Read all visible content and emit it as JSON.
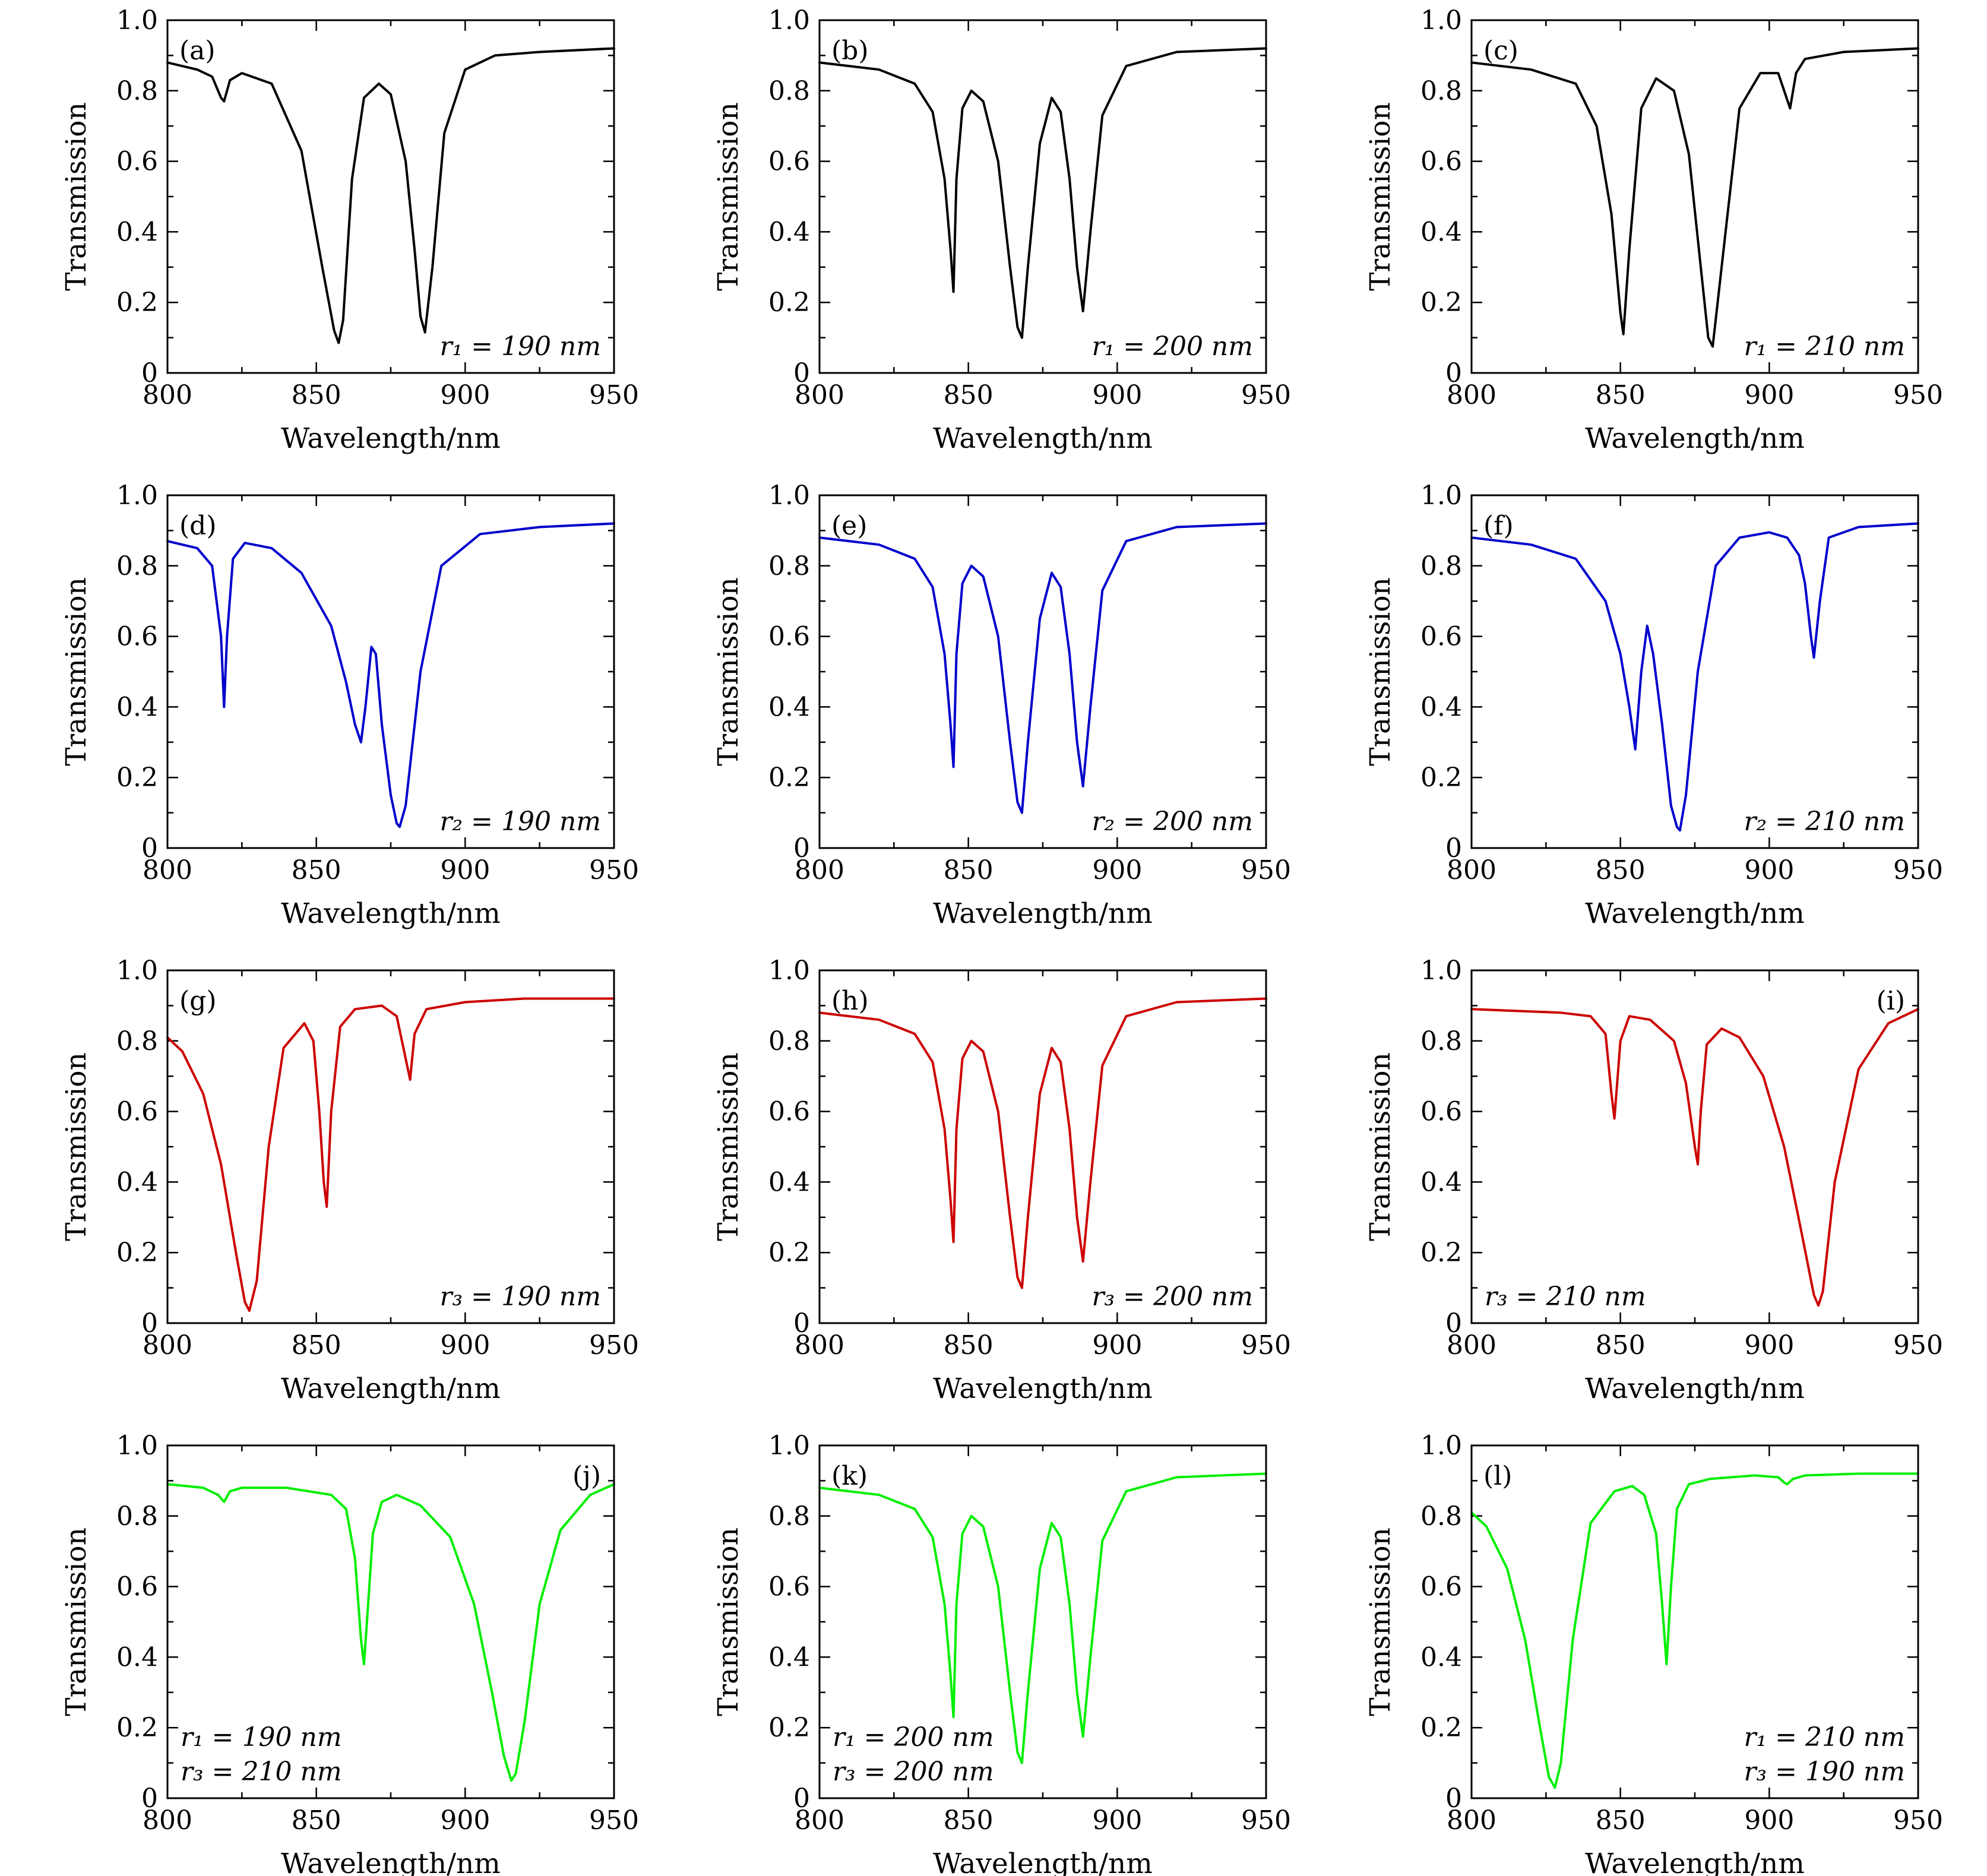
{
  "chart_data": [
    {
      "type": "line",
      "panel_label": "(a)",
      "annotation": [
        "r₁ = 190 nm"
      ],
      "annotation_position": "bottom-right",
      "label_position": "top-left",
      "color": "#000000",
      "xlabel": "Wavelength/nm",
      "ylabel": "Transmission",
      "xlim": [
        800,
        950
      ],
      "ylim": [
        0,
        1.0
      ],
      "xticks": [
        "800",
        "850",
        "900",
        "950"
      ],
      "yticks": [
        "0",
        "0.2",
        "0.4",
        "0.6",
        "0.8",
        "1.0"
      ],
      "x": [
        800,
        810,
        815,
        818,
        819,
        821,
        825,
        835,
        845,
        852,
        856,
        857.5,
        859,
        862,
        866,
        871,
        875,
        880,
        883,
        885,
        886.5,
        889,
        893,
        900,
        910,
        925,
        950
      ],
      "values": [
        0.88,
        0.86,
        0.84,
        0.78,
        0.77,
        0.83,
        0.85,
        0.82,
        0.63,
        0.3,
        0.12,
        0.085,
        0.15,
        0.55,
        0.78,
        0.82,
        0.79,
        0.6,
        0.35,
        0.16,
        0.115,
        0.3,
        0.68,
        0.86,
        0.9,
        0.91,
        0.92
      ]
    },
    {
      "type": "line",
      "panel_label": "(b)",
      "annotation": [
        "r₁ = 200 nm"
      ],
      "annotation_position": "bottom-right",
      "label_position": "top-left",
      "color": "#000000",
      "xlabel": "Wavelength/nm",
      "ylabel": "Transmission",
      "xlim": [
        800,
        950
      ],
      "ylim": [
        0,
        1.0
      ],
      "xticks": [
        "800",
        "850",
        "900",
        "950"
      ],
      "yticks": [
        "0",
        "0.2",
        "0.4",
        "0.6",
        "0.8",
        "1.0"
      ],
      "x": [
        800,
        820,
        832,
        838,
        842,
        844,
        845,
        846,
        848,
        851,
        855,
        860,
        864,
        866.5,
        868,
        870,
        874,
        878,
        881,
        884,
        886.5,
        888.5,
        891,
        895,
        903,
        920,
        950
      ],
      "values": [
        0.88,
        0.86,
        0.82,
        0.74,
        0.55,
        0.35,
        0.23,
        0.55,
        0.75,
        0.8,
        0.77,
        0.6,
        0.3,
        0.13,
        0.1,
        0.3,
        0.65,
        0.78,
        0.74,
        0.55,
        0.3,
        0.175,
        0.4,
        0.73,
        0.87,
        0.91,
        0.92
      ]
    },
    {
      "type": "line",
      "panel_label": "(c)",
      "annotation": [
        "r₁ = 210 nm"
      ],
      "annotation_position": "bottom-right",
      "label_position": "top-left",
      "color": "#000000",
      "xlabel": "Wavelength/nm",
      "ylabel": "Transmission",
      "xlim": [
        800,
        950
      ],
      "ylim": [
        0,
        1.0
      ],
      "xticks": [
        "800",
        "850",
        "900",
        "950"
      ],
      "yticks": [
        "0",
        "0.2",
        "0.4",
        "0.6",
        "0.8",
        "1.0"
      ],
      "x": [
        800,
        820,
        835,
        842,
        847,
        850,
        851,
        853,
        857,
        862,
        868,
        873,
        877,
        879.5,
        881,
        884,
        890,
        897,
        903,
        905,
        907,
        909,
        912,
        925,
        950
      ],
      "values": [
        0.88,
        0.86,
        0.82,
        0.7,
        0.45,
        0.17,
        0.11,
        0.35,
        0.75,
        0.835,
        0.8,
        0.62,
        0.3,
        0.1,
        0.075,
        0.3,
        0.75,
        0.85,
        0.85,
        0.8,
        0.75,
        0.85,
        0.89,
        0.91,
        0.92
      ]
    },
    {
      "type": "line",
      "panel_label": "(d)",
      "annotation": [
        "r₂ = 190 nm"
      ],
      "annotation_position": "bottom-right",
      "label_position": "top-left",
      "color": "#0000cc",
      "xlabel": "Wavelength/nm",
      "ylabel": "Transmission",
      "xlim": [
        800,
        950
      ],
      "ylim": [
        0,
        1.0
      ],
      "xticks": [
        "800",
        "850",
        "900",
        "950"
      ],
      "yticks": [
        "0",
        "0.2",
        "0.4",
        "0.6",
        "0.8",
        "1.0"
      ],
      "x": [
        800,
        810,
        815,
        818,
        819,
        820,
        822,
        826,
        835,
        845,
        855,
        860,
        863,
        865,
        866.5,
        868.5,
        870,
        872,
        875,
        877,
        878,
        880,
        885,
        892,
        905,
        925,
        950
      ],
      "values": [
        0.87,
        0.85,
        0.8,
        0.6,
        0.4,
        0.6,
        0.82,
        0.865,
        0.85,
        0.78,
        0.63,
        0.47,
        0.35,
        0.3,
        0.4,
        0.57,
        0.55,
        0.35,
        0.15,
        0.07,
        0.06,
        0.12,
        0.5,
        0.8,
        0.89,
        0.91,
        0.92
      ]
    },
    {
      "type": "line",
      "panel_label": "(e)",
      "annotation": [
        "r₂ = 200 nm"
      ],
      "annotation_position": "bottom-right",
      "label_position": "top-left",
      "color": "#0000cc",
      "xlabel": "Wavelength/nm",
      "ylabel": "Transmission",
      "xlim": [
        800,
        950
      ],
      "ylim": [
        0,
        1.0
      ],
      "xticks": [
        "800",
        "850",
        "900",
        "950"
      ],
      "yticks": [
        "0",
        "0.2",
        "0.4",
        "0.6",
        "0.8",
        "1.0"
      ],
      "x": [
        800,
        820,
        832,
        838,
        842,
        844,
        845,
        846,
        848,
        851,
        855,
        860,
        864,
        866.5,
        868,
        870,
        874,
        878,
        881,
        884,
        886.5,
        888.5,
        891,
        895,
        903,
        920,
        950
      ],
      "values": [
        0.88,
        0.86,
        0.82,
        0.74,
        0.55,
        0.35,
        0.23,
        0.55,
        0.75,
        0.8,
        0.77,
        0.6,
        0.3,
        0.13,
        0.1,
        0.3,
        0.65,
        0.78,
        0.74,
        0.55,
        0.3,
        0.175,
        0.4,
        0.73,
        0.87,
        0.91,
        0.92
      ]
    },
    {
      "type": "line",
      "panel_label": "(f)",
      "annotation": [
        "r₂ = 210 nm"
      ],
      "annotation_position": "bottom-right",
      "label_position": "top-left",
      "color": "#0000cc",
      "xlabel": "Wavelength/nm",
      "ylabel": "Transmission",
      "xlim": [
        800,
        950
      ],
      "ylim": [
        0,
        1.0
      ],
      "xticks": [
        "800",
        "850",
        "900",
        "950"
      ],
      "yticks": [
        "0",
        "0.2",
        "0.4",
        "0.6",
        "0.8",
        "1.0"
      ],
      "x": [
        800,
        820,
        835,
        845,
        850,
        853,
        855,
        857,
        859,
        861,
        864,
        867,
        869,
        870,
        872,
        876,
        882,
        890,
        900,
        906,
        910,
        912,
        914,
        915,
        917,
        920,
        930,
        950
      ],
      "values": [
        0.88,
        0.86,
        0.82,
        0.7,
        0.55,
        0.4,
        0.28,
        0.5,
        0.63,
        0.55,
        0.35,
        0.12,
        0.06,
        0.05,
        0.15,
        0.5,
        0.8,
        0.88,
        0.895,
        0.88,
        0.83,
        0.75,
        0.6,
        0.54,
        0.7,
        0.88,
        0.91,
        0.92
      ]
    },
    {
      "type": "line",
      "panel_label": "(g)",
      "annotation": [
        "r₃ = 190 nm"
      ],
      "annotation_position": "bottom-right",
      "label_position": "top-left",
      "color": "#cc0000",
      "xlabel": "Wavelength/nm",
      "ylabel": "Transmission",
      "xlim": [
        800,
        950
      ],
      "ylim": [
        0,
        1.0
      ],
      "xticks": [
        "800",
        "850",
        "900",
        "950"
      ],
      "yticks": [
        "0",
        "0.2",
        "0.4",
        "0.6",
        "0.8",
        "1.0"
      ],
      "x": [
        800,
        805,
        812,
        818,
        823,
        826,
        827.5,
        830,
        834,
        839,
        846,
        849,
        851,
        852.5,
        853.5,
        855,
        858,
        863,
        872,
        877,
        880,
        881.5,
        883,
        887,
        900,
        920,
        950
      ],
      "values": [
        0.81,
        0.77,
        0.65,
        0.45,
        0.2,
        0.06,
        0.035,
        0.12,
        0.5,
        0.78,
        0.85,
        0.8,
        0.6,
        0.4,
        0.33,
        0.6,
        0.84,
        0.89,
        0.9,
        0.87,
        0.75,
        0.69,
        0.82,
        0.89,
        0.91,
        0.92,
        0.92
      ]
    },
    {
      "type": "line",
      "panel_label": "(h)",
      "annotation": [
        "r₃ = 200 nm"
      ],
      "annotation_position": "bottom-right",
      "label_position": "top-left",
      "color": "#cc0000",
      "xlabel": "Wavelength/nm",
      "ylabel": "Transmission",
      "xlim": [
        800,
        950
      ],
      "ylim": [
        0,
        1.0
      ],
      "xticks": [
        "800",
        "850",
        "900",
        "950"
      ],
      "yticks": [
        "0",
        "0.2",
        "0.4",
        "0.6",
        "0.8",
        "1.0"
      ],
      "x": [
        800,
        820,
        832,
        838,
        842,
        844,
        845,
        846,
        848,
        851,
        855,
        860,
        864,
        866.5,
        868,
        870,
        874,
        878,
        881,
        884,
        886.5,
        888.5,
        891,
        895,
        903,
        920,
        950
      ],
      "values": [
        0.88,
        0.86,
        0.82,
        0.74,
        0.55,
        0.35,
        0.23,
        0.55,
        0.75,
        0.8,
        0.77,
        0.6,
        0.3,
        0.13,
        0.1,
        0.3,
        0.65,
        0.78,
        0.74,
        0.55,
        0.3,
        0.175,
        0.4,
        0.73,
        0.87,
        0.91,
        0.92
      ]
    },
    {
      "type": "line",
      "panel_label": "(i)",
      "annotation": [
        "r₃ = 210 nm"
      ],
      "annotation_position": "bottom-left",
      "label_position": "top-right",
      "color": "#cc0000",
      "xlabel": "Wavelength/nm",
      "ylabel": "Transmission",
      "xlim": [
        800,
        950
      ],
      "ylim": [
        0,
        1.0
      ],
      "xticks": [
        "800",
        "850",
        "900",
        "950"
      ],
      "yticks": [
        "0",
        "0.2",
        "0.4",
        "0.6",
        "0.8",
        "1.0"
      ],
      "x": [
        800,
        830,
        840,
        845,
        847,
        848,
        850,
        853,
        860,
        868,
        872,
        875,
        876,
        877,
        879,
        884,
        890,
        898,
        905,
        911,
        915,
        916.5,
        918,
        922,
        930,
        940,
        950
      ],
      "values": [
        0.89,
        0.88,
        0.87,
        0.82,
        0.65,
        0.58,
        0.8,
        0.87,
        0.86,
        0.8,
        0.68,
        0.5,
        0.45,
        0.6,
        0.79,
        0.835,
        0.81,
        0.7,
        0.5,
        0.25,
        0.08,
        0.05,
        0.09,
        0.4,
        0.72,
        0.85,
        0.89
      ]
    },
    {
      "type": "line",
      "panel_label": "(j)",
      "annotation": [
        "r₁ = 190 nm",
        "r₃ = 210 nm"
      ],
      "annotation_position": "bottom-left",
      "label_position": "top-right",
      "color": "#00ee00",
      "xlabel": "Wavelength/nm",
      "ylabel": "Transmission",
      "xlim": [
        800,
        950
      ],
      "ylim": [
        0,
        1.0
      ],
      "xticks": [
        "800",
        "850",
        "900",
        "950"
      ],
      "yticks": [
        "0",
        "0.2",
        "0.4",
        "0.6",
        "0.8",
        "1.0"
      ],
      "x": [
        800,
        812,
        817,
        819,
        821,
        825,
        840,
        855,
        860,
        863,
        865,
        866,
        867,
        869,
        872,
        877,
        885,
        895,
        903,
        909,
        913,
        915.5,
        917,
        920,
        925,
        932,
        942,
        950
      ],
      "values": [
        0.89,
        0.88,
        0.86,
        0.84,
        0.87,
        0.88,
        0.88,
        0.86,
        0.82,
        0.68,
        0.45,
        0.38,
        0.5,
        0.75,
        0.84,
        0.86,
        0.83,
        0.74,
        0.55,
        0.3,
        0.12,
        0.05,
        0.07,
        0.22,
        0.55,
        0.76,
        0.86,
        0.89
      ]
    },
    {
      "type": "line",
      "panel_label": "(k)",
      "annotation": [
        "r₁ = 200 nm",
        "r₃ = 200 nm"
      ],
      "annotation_position": "bottom-left",
      "label_position": "top-left",
      "color": "#00ee00",
      "xlabel": "Wavelength/nm",
      "ylabel": "Transmission",
      "xlim": [
        800,
        950
      ],
      "ylim": [
        0,
        1.0
      ],
      "xticks": [
        "800",
        "850",
        "900",
        "950"
      ],
      "yticks": [
        "0",
        "0.2",
        "0.4",
        "0.6",
        "0.8",
        "1.0"
      ],
      "x": [
        800,
        820,
        832,
        838,
        842,
        844,
        845,
        846,
        848,
        851,
        855,
        860,
        864,
        866.5,
        868,
        870,
        874,
        878,
        881,
        884,
        886.5,
        888.5,
        891,
        895,
        903,
        920,
        950
      ],
      "values": [
        0.88,
        0.86,
        0.82,
        0.74,
        0.55,
        0.35,
        0.23,
        0.55,
        0.75,
        0.8,
        0.77,
        0.6,
        0.3,
        0.13,
        0.1,
        0.3,
        0.65,
        0.78,
        0.74,
        0.55,
        0.3,
        0.175,
        0.4,
        0.73,
        0.87,
        0.91,
        0.92
      ]
    },
    {
      "type": "line",
      "panel_label": "(l)",
      "annotation": [
        "r₁ = 210 nm",
        "r₃ = 190 nm"
      ],
      "annotation_position": "bottom-right",
      "label_position": "top-left",
      "color": "#00ee00",
      "xlabel": "Wavelength/nm",
      "ylabel": "Transmission",
      "xlim": [
        800,
        950
      ],
      "ylim": [
        0,
        1.0
      ],
      "xticks": [
        "800",
        "850",
        "900",
        "950"
      ],
      "yticks": [
        "0",
        "0.2",
        "0.4",
        "0.6",
        "0.8",
        "1.0"
      ],
      "x": [
        800,
        805,
        812,
        818,
        823,
        826,
        828,
        830,
        834,
        840,
        848,
        854,
        858,
        862,
        864,
        865.5,
        867,
        869,
        873,
        880,
        895,
        903,
        905,
        906,
        908,
        912,
        930,
        950
      ],
      "values": [
        0.81,
        0.77,
        0.65,
        0.45,
        0.2,
        0.06,
        0.03,
        0.1,
        0.45,
        0.78,
        0.87,
        0.885,
        0.86,
        0.75,
        0.55,
        0.38,
        0.6,
        0.82,
        0.89,
        0.905,
        0.915,
        0.91,
        0.895,
        0.89,
        0.905,
        0.915,
        0.92,
        0.92
      ]
    }
  ]
}
